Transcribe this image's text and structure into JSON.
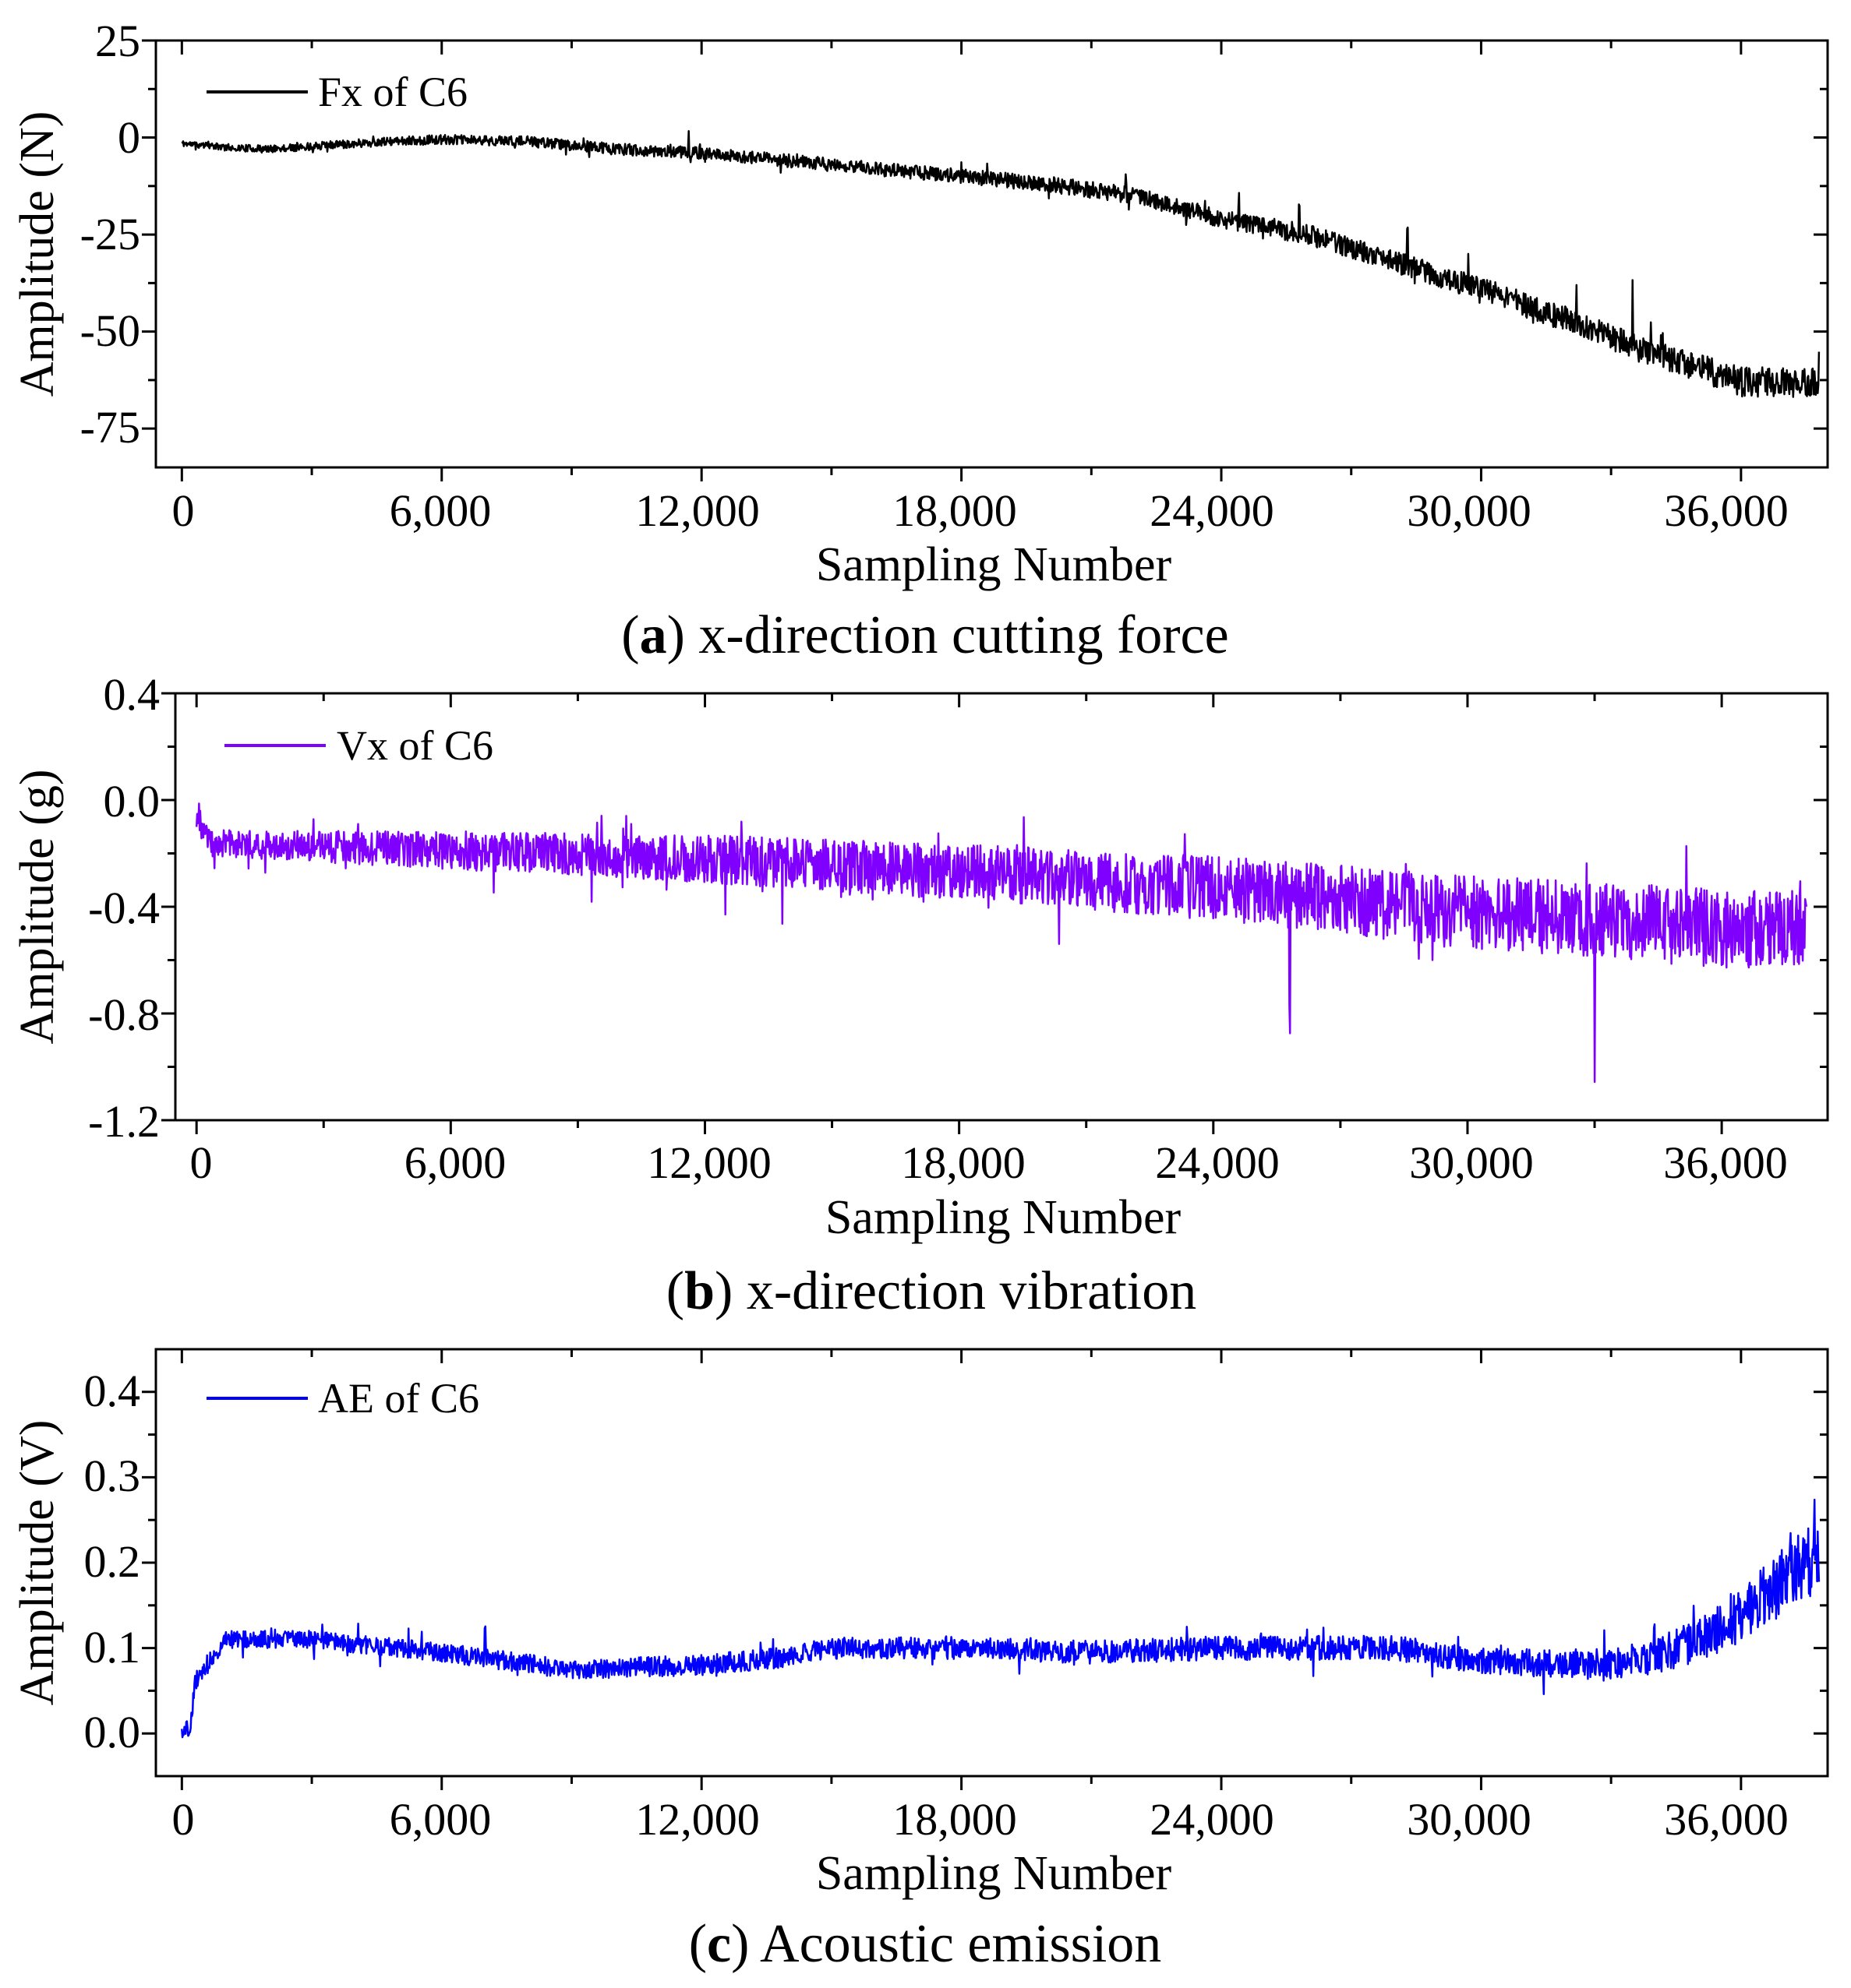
{
  "figure": {
    "panels": [
      {
        "id": "a",
        "caption_letter": "a",
        "caption_text": "x-direction cutting force"
      },
      {
        "id": "b",
        "caption_letter": "b",
        "caption_text": "x-direction vibration"
      },
      {
        "id": "c",
        "caption_letter": "c",
        "caption_text": "Acoustic emission"
      }
    ]
  },
  "chart_data": [
    {
      "type": "line",
      "title": "(a) x-direction cutting force",
      "xlabel": "Sampling Number",
      "ylabel": "Amplitude (N)",
      "xlim": [
        -600,
        38000
      ],
      "ylim": [
        -85,
        25
      ],
      "xticks": [
        0,
        6000,
        12000,
        18000,
        24000,
        30000,
        36000
      ],
      "xtick_labels": [
        "0",
        "6,000",
        "12,000",
        "18,000",
        "24,000",
        "30,000",
        "36,000"
      ],
      "yticks": [
        25,
        0,
        -25,
        -50,
        -75
      ],
      "ytick_labels": [
        "25",
        "0",
        "-25",
        "-50",
        "-75"
      ],
      "legend": {
        "position": "top-left",
        "entries": [
          "Fx of C6"
        ]
      },
      "series": [
        {
          "name": "Fx of C6",
          "color": "#000000",
          "x_range": [
            0,
            37800
          ],
          "trend": [
            [
              0,
              -1.5
            ],
            [
              1000,
              -2.5
            ],
            [
              2000,
              -3
            ],
            [
              4000,
              -1.5
            ],
            [
              6000,
              -0.5
            ],
            [
              8000,
              -1
            ],
            [
              10000,
              -3
            ],
            [
              12000,
              -4
            ],
            [
              14000,
              -6
            ],
            [
              16000,
              -8
            ],
            [
              18000,
              -10
            ],
            [
              20000,
              -12
            ],
            [
              22000,
              -15
            ],
            [
              24000,
              -21
            ],
            [
              26000,
              -25
            ],
            [
              28000,
              -32
            ],
            [
              30000,
              -39
            ],
            [
              32000,
              -47
            ],
            [
              34000,
              -56
            ],
            [
              35500,
              -61
            ],
            [
              36000,
              -63
            ],
            [
              37800,
              -63
            ]
          ],
          "noise": [
            [
              0,
              0.8
            ],
            [
              10000,
              1.5
            ],
            [
              20000,
              2
            ],
            [
              30000,
              3
            ],
            [
              37800,
              4
            ]
          ],
          "spikes": [
            [
              11700,
              4
            ],
            [
              18000,
              4
            ],
            [
              21800,
              4
            ],
            [
              24400,
              6
            ],
            [
              25800,
              9
            ],
            [
              28300,
              9
            ],
            [
              29700,
              10
            ],
            [
              32200,
              8
            ],
            [
              33500,
              14
            ]
          ]
        }
      ]
    },
    {
      "type": "line",
      "title": "(b) x-direction vibration",
      "xlabel": "Sampling Number",
      "ylabel": "Amplitude (g)",
      "xlim": [
        -500,
        38500
      ],
      "ylim": [
        -1.2,
        0.4
      ],
      "xticks": [
        0,
        6000,
        12000,
        18000,
        24000,
        30000,
        36000
      ],
      "xtick_labels": [
        "0",
        "6,000",
        "12,000",
        "18,000",
        "24,000",
        "30,000",
        "36,000"
      ],
      "yticks": [
        0.4,
        0.0,
        -0.4,
        -0.8,
        -1.2
      ],
      "ytick_labels": [
        "0.4",
        "0.0",
        "-0.4",
        "-0.8",
        "-1.2"
      ],
      "legend": {
        "position": "top-left",
        "entries": [
          "Vx of C6"
        ]
      },
      "series": [
        {
          "name": "Vx of C6",
          "color": "#8000ff",
          "x_range": [
            0,
            38000
          ],
          "trend": [
            [
              0,
              -0.06
            ],
            [
              300,
              -0.16
            ],
            [
              6000,
              -0.19
            ],
            [
              12000,
              -0.22
            ],
            [
              18000,
              -0.27
            ],
            [
              24000,
              -0.33
            ],
            [
              30000,
              -0.42
            ],
            [
              36000,
              -0.48
            ],
            [
              38000,
              -0.49
            ]
          ],
          "noise": [
            [
              0,
              0.05
            ],
            [
              12000,
              0.09
            ],
            [
              24000,
              0.12
            ],
            [
              30000,
              0.14
            ],
            [
              38000,
              0.15
            ]
          ],
          "spikes": [
            [
              25800,
              -0.45
            ],
            [
              33000,
              -0.5
            ]
          ]
        }
      ]
    },
    {
      "type": "line",
      "title": "(c) Acoustic emission",
      "xlabel": "Sampling Number",
      "ylabel": "Amplitude (V)",
      "xlim": [
        -600,
        38000
      ],
      "ylim": [
        -0.05,
        0.45
      ],
      "xticks": [
        0,
        6000,
        12000,
        18000,
        24000,
        30000,
        36000
      ],
      "xtick_labels": [
        "0",
        "6,000",
        "12,000",
        "18,000",
        "24,000",
        "30,000",
        "36,000"
      ],
      "yticks": [
        0.4,
        0.3,
        0.2,
        0.1,
        0.0
      ],
      "ytick_labels": [
        "0.4",
        "0.3",
        "0.2",
        "0.1",
        "0.0"
      ],
      "legend": {
        "position": "top-left",
        "entries": [
          "AE of C6"
        ]
      },
      "series": [
        {
          "name": "AE of C6",
          "color": "#0000ff",
          "x_range": [
            0,
            37800
          ],
          "trend": [
            [
              0,
              0.005
            ],
            [
              200,
              0.005
            ],
            [
              300,
              0.06
            ],
            [
              1000,
              0.11
            ],
            [
              3000,
              0.11
            ],
            [
              6000,
              0.095
            ],
            [
              9000,
              0.075
            ],
            [
              12000,
              0.08
            ],
            [
              14000,
              0.09
            ],
            [
              15000,
              0.1
            ],
            [
              18000,
              0.1
            ],
            [
              21000,
              0.095
            ],
            [
              24000,
              0.1
            ],
            [
              28000,
              0.1
            ],
            [
              30000,
              0.085
            ],
            [
              33000,
              0.08
            ],
            [
              34000,
              0.09
            ],
            [
              35000,
              0.11
            ],
            [
              36000,
              0.14
            ],
            [
              37000,
              0.18
            ],
            [
              37800,
              0.21
            ]
          ],
          "noise": [
            [
              0,
              0.01
            ],
            [
              30000,
              0.015
            ],
            [
              34000,
              0.02
            ],
            [
              37800,
              0.045
            ]
          ],
          "spikes": [
            [
              7000,
              0.04
            ],
            [
              34000,
              0.04
            ],
            [
              37700,
              0.1
            ]
          ]
        }
      ]
    }
  ]
}
